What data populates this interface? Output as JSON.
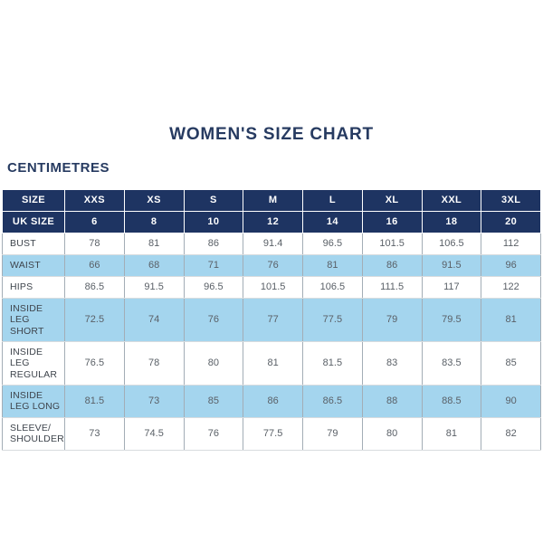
{
  "page": {
    "title": "WOMEN'S SIZE CHART",
    "unit_label": "CENTIMETRES"
  },
  "chart_data": {
    "type": "table",
    "title": "WOMEN'S SIZE CHART",
    "unit": "CENTIMETRES",
    "columns": [
      "SIZE",
      "XXS",
      "XS",
      "S",
      "M",
      "L",
      "XL",
      "XXL",
      "3XL"
    ],
    "header_rows": [
      {
        "label": "UK SIZE",
        "values": [
          "6",
          "8",
          "10",
          "12",
          "14",
          "16",
          "18",
          "20"
        ]
      }
    ],
    "rows": [
      {
        "label": "BUST",
        "values": [
          "78",
          "81",
          "86",
          "91.4",
          "96.5",
          "101.5",
          "106.5",
          "112"
        ]
      },
      {
        "label": "WAIST",
        "values": [
          "66",
          "68",
          "71",
          "76",
          "81",
          "86",
          "91.5",
          "96"
        ]
      },
      {
        "label": "HIPS",
        "values": [
          "86.5",
          "91.5",
          "96.5",
          "101.5",
          "106.5",
          "111.5",
          "117",
          "122"
        ]
      },
      {
        "label": "INSIDE LEG SHORT",
        "values": [
          "72.5",
          "74",
          "76",
          "77",
          "77.5",
          "79",
          "79.5",
          "81"
        ]
      },
      {
        "label": "INSIDE LEG REGULAR",
        "values": [
          "76.5",
          "78",
          "80",
          "81",
          "81.5",
          "83",
          "83.5",
          "85"
        ]
      },
      {
        "label": "INSIDE LEG LONG",
        "values": [
          "81.5",
          "73",
          "85",
          "86",
          "86.5",
          "88",
          "88.5",
          "90"
        ]
      },
      {
        "label": "SLEEVE/ SHOULDER",
        "values": [
          "73",
          "74.5",
          "76",
          "77.5",
          "79",
          "80",
          "81",
          "82"
        ]
      }
    ]
  },
  "colors": {
    "header_navy": "#1e3462",
    "row_light_blue": "#a4d5ee",
    "title_text": "#273b61",
    "label_text": "#3e444c",
    "value_text": "#5a6067"
  }
}
